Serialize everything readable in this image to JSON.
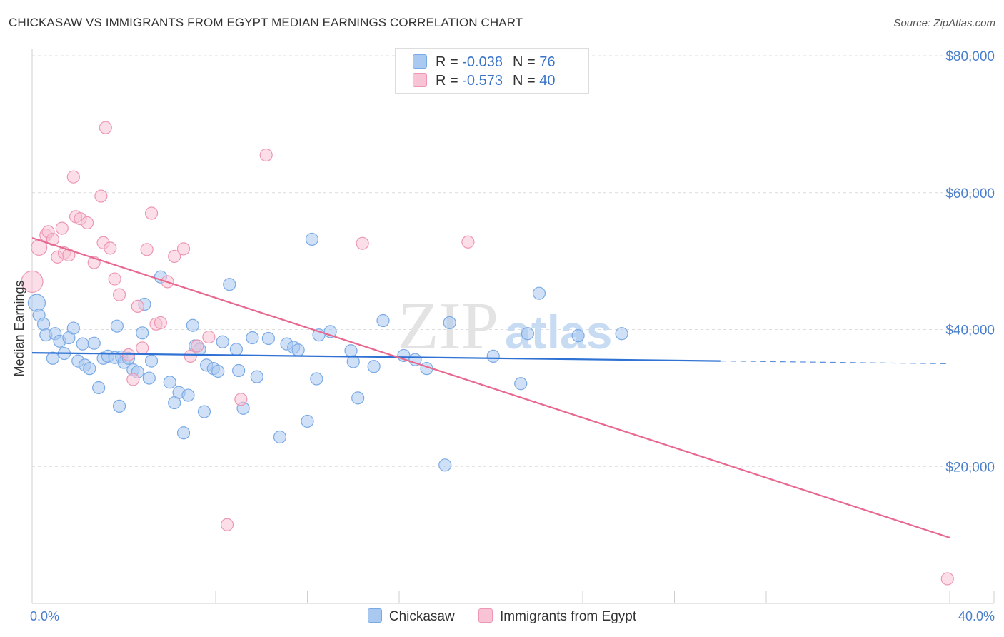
{
  "title": "CHICKASAW VS IMMIGRANTS FROM EGYPT MEDIAN EARNINGS CORRELATION CHART",
  "source": "Source: ZipAtlas.com",
  "watermark": {
    "zip": "ZIP",
    "atlas": "atlas"
  },
  "legend_top": [
    {
      "r_label": "R =",
      "r_value": "-0.038",
      "n_label": "N =",
      "n_value": "76",
      "color": "#a9c9f0",
      "border": "#7aaae6"
    },
    {
      "r_label": "R =",
      "r_value": "-0.573",
      "n_label": "N =",
      "n_value": "40",
      "color": "#f8c3d4",
      "border": "#ee97b3"
    }
  ],
  "legend_bottom": [
    "Chickasaw",
    "Immigrants from Egypt"
  ],
  "chart_data": {
    "type": "scatter",
    "title": "CHICKASAW VS IMMIGRANTS FROM EGYPT MEDIAN EARNINGS CORRELATION CHART",
    "xlabel": "",
    "ylabel": "Median Earnings",
    "xlim": [
      0,
      40
    ],
    "ylim": [
      0,
      80000
    ],
    "x_tick_labels": [
      "0.0%",
      "40.0%"
    ],
    "y_ticks": [
      20000,
      40000,
      60000,
      80000
    ],
    "y_tick_labels": [
      "$20,000",
      "$40,000",
      "$60,000",
      "$80,000"
    ],
    "grid": true,
    "series": [
      {
        "name": "Chickasaw",
        "color": "#7aaae6",
        "fill": "#a9c9f0",
        "line_color": "#2f72d3",
        "trend": {
          "x0": 0,
          "y0": 36600,
          "x1": 30,
          "y1": 35400,
          "dash_to_x": 40,
          "dash_y": 35000
        },
        "points": [
          [
            0.2,
            43900
          ],
          [
            0.3,
            42100
          ],
          [
            0.5,
            40800
          ],
          [
            0.6,
            39200
          ],
          [
            0.9,
            35800
          ],
          [
            1.0,
            39400
          ],
          [
            1.2,
            38300
          ],
          [
            1.4,
            36500
          ],
          [
            1.6,
            38800
          ],
          [
            1.8,
            40200
          ],
          [
            2.0,
            35400
          ],
          [
            2.2,
            37900
          ],
          [
            2.3,
            34800
          ],
          [
            2.5,
            34300
          ],
          [
            2.7,
            38000
          ],
          [
            2.9,
            31500
          ],
          [
            3.1,
            35800
          ],
          [
            3.3,
            36100
          ],
          [
            3.6,
            35900
          ],
          [
            3.7,
            40500
          ],
          [
            3.8,
            28800
          ],
          [
            3.9,
            36000
          ],
          [
            4.0,
            35200
          ],
          [
            4.2,
            35800
          ],
          [
            4.4,
            34100
          ],
          [
            4.6,
            33800
          ],
          [
            4.8,
            39500
          ],
          [
            4.9,
            43700
          ],
          [
            5.1,
            32900
          ],
          [
            5.2,
            35400
          ],
          [
            5.6,
            47700
          ],
          [
            6.0,
            32300
          ],
          [
            6.2,
            29300
          ],
          [
            6.4,
            30800
          ],
          [
            6.6,
            24900
          ],
          [
            6.8,
            30400
          ],
          [
            7.0,
            40600
          ],
          [
            7.1,
            37600
          ],
          [
            7.3,
            37100
          ],
          [
            7.5,
            28000
          ],
          [
            7.6,
            34800
          ],
          [
            7.9,
            34300
          ],
          [
            8.1,
            33900
          ],
          [
            8.3,
            38200
          ],
          [
            8.6,
            46600
          ],
          [
            8.9,
            37100
          ],
          [
            9.0,
            34000
          ],
          [
            9.2,
            28500
          ],
          [
            9.6,
            38800
          ],
          [
            9.8,
            33100
          ],
          [
            10.3,
            38700
          ],
          [
            10.8,
            24300
          ],
          [
            11.1,
            37900
          ],
          [
            11.4,
            37400
          ],
          [
            11.6,
            37000
          ],
          [
            12.0,
            26600
          ],
          [
            12.2,
            53200
          ],
          [
            12.4,
            32800
          ],
          [
            12.5,
            39200
          ],
          [
            13.0,
            39700
          ],
          [
            13.9,
            36900
          ],
          [
            14.0,
            35300
          ],
          [
            14.2,
            30000
          ],
          [
            14.9,
            34600
          ],
          [
            15.3,
            41300
          ],
          [
            16.2,
            36200
          ],
          [
            16.7,
            35600
          ],
          [
            17.2,
            34300
          ],
          [
            18.0,
            20200
          ],
          [
            18.2,
            41000
          ],
          [
            20.1,
            36100
          ],
          [
            21.3,
            32100
          ],
          [
            21.6,
            39400
          ],
          [
            22.1,
            45300
          ],
          [
            23.8,
            39100
          ],
          [
            25.7,
            39400
          ]
        ]
      },
      {
        "name": "Immigrants from Egypt",
        "color": "#ee97b3",
        "fill": "#f8c3d4",
        "line_color": "#e8698f",
        "trend": {
          "x0": 0,
          "y0": 53400,
          "x1": 40,
          "y1": 9600
        },
        "points": [
          [
            0.0,
            47000
          ],
          [
            0.3,
            52000
          ],
          [
            0.6,
            53800
          ],
          [
            0.7,
            54300
          ],
          [
            0.9,
            53200
          ],
          [
            1.1,
            50600
          ],
          [
            1.3,
            54800
          ],
          [
            1.4,
            51200
          ],
          [
            1.6,
            50900
          ],
          [
            1.8,
            62300
          ],
          [
            1.9,
            56500
          ],
          [
            2.1,
            56200
          ],
          [
            2.4,
            55600
          ],
          [
            2.7,
            49800
          ],
          [
            3.0,
            59500
          ],
          [
            3.1,
            52700
          ],
          [
            3.2,
            69500
          ],
          [
            3.4,
            51900
          ],
          [
            3.6,
            47400
          ],
          [
            3.8,
            45100
          ],
          [
            4.2,
            36300
          ],
          [
            4.4,
            32700
          ],
          [
            4.6,
            43400
          ],
          [
            4.8,
            37300
          ],
          [
            5.0,
            51700
          ],
          [
            5.2,
            57000
          ],
          [
            5.4,
            40800
          ],
          [
            5.6,
            41000
          ],
          [
            5.9,
            47000
          ],
          [
            6.2,
            50700
          ],
          [
            6.6,
            51800
          ],
          [
            6.9,
            36100
          ],
          [
            7.2,
            37600
          ],
          [
            7.7,
            38900
          ],
          [
            8.5,
            11500
          ],
          [
            9.1,
            29800
          ],
          [
            10.2,
            65500
          ],
          [
            14.4,
            52600
          ],
          [
            19.0,
            52800
          ],
          [
            39.9,
            3600
          ]
        ]
      }
    ]
  }
}
